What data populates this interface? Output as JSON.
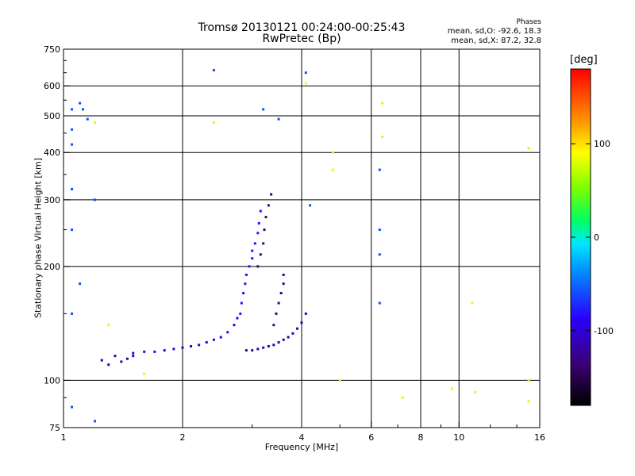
{
  "title": {
    "line1": "Tromsø 20130121 00:24:00-00:25:43",
    "line2": "RwPretec (Bp)"
  },
  "phases": {
    "heading": "Phases",
    "o_stats": "mean, sd,O: -92.6, 18.3",
    "x_stats": "mean, sd,X: 87.2, 32.8"
  },
  "colorbar": {
    "unit": "[deg]",
    "range": [
      -180,
      180
    ],
    "ticks": [
      "100",
      "0",
      "-100"
    ],
    "tick_values": [
      100,
      0,
      -100
    ]
  },
  "chart_data": {
    "type": "scatter",
    "xlabel": "Frequency [MHz]",
    "ylabel": "Stationary phase Virtual Height [km]",
    "xscale": "log",
    "yscale": "log",
    "xlim": [
      1,
      16
    ],
    "ylim": [
      75,
      750
    ],
    "xticks": [
      "1",
      "2",
      "4",
      "6",
      "8",
      "10",
      "16"
    ],
    "xtick_values": [
      1,
      2,
      4,
      6,
      8,
      10,
      16
    ],
    "yticks": [
      "750",
      "600",
      "500",
      "400",
      "300",
      "200",
      "100",
      "75"
    ],
    "ytick_values": [
      750,
      600,
      500,
      400,
      300,
      200,
      100,
      75
    ],
    "xgrid": [
      2,
      4,
      6,
      8,
      10
    ],
    "ygrid": [
      600,
      500,
      400,
      300,
      200,
      100
    ],
    "color_by": "phase [deg]",
    "series": [
      {
        "trace": "o-mode-base",
        "phase": -95,
        "points": [
          [
            1.5,
            118
          ],
          [
            1.6,
            119
          ],
          [
            1.7,
            119
          ],
          [
            1.8,
            120
          ],
          [
            1.9,
            121
          ],
          [
            2.0,
            122
          ],
          [
            2.1,
            123
          ],
          [
            2.2,
            124
          ],
          [
            2.3,
            126
          ],
          [
            2.4,
            128
          ],
          [
            2.5,
            130
          ],
          [
            2.6,
            134
          ],
          [
            2.7,
            140
          ],
          [
            2.75,
            146
          ]
        ]
      },
      {
        "trace": "o-mode-cusp",
        "phase": -80,
        "points": [
          [
            2.8,
            150
          ],
          [
            2.82,
            160
          ],
          [
            2.85,
            170
          ],
          [
            2.88,
            180
          ],
          [
            2.9,
            190
          ],
          [
            2.95,
            200
          ],
          [
            3.0,
            210
          ],
          [
            3.0,
            220
          ],
          [
            3.05,
            230
          ],
          [
            3.1,
            245
          ],
          [
            3.12,
            260
          ],
          [
            3.15,
            280
          ]
        ]
      },
      {
        "trace": "x-mode-base",
        "phase": -115,
        "points": [
          [
            2.9,
            120
          ],
          [
            3.0,
            120
          ],
          [
            3.1,
            121
          ],
          [
            3.2,
            122
          ],
          [
            3.3,
            123
          ],
          [
            3.4,
            124
          ],
          [
            3.5,
            126
          ],
          [
            3.6,
            128
          ],
          [
            3.7,
            130
          ],
          [
            3.8,
            133
          ],
          [
            3.9,
            137
          ],
          [
            4.0,
            142
          ],
          [
            4.1,
            150
          ]
        ]
      },
      {
        "trace": "x-mode-cusp",
        "phase": -135,
        "points": [
          [
            3.1,
            200
          ],
          [
            3.15,
            215
          ],
          [
            3.2,
            230
          ],
          [
            3.22,
            250
          ],
          [
            3.25,
            270
          ],
          [
            3.3,
            290
          ],
          [
            3.35,
            310
          ]
        ]
      },
      {
        "trace": "x-mode-second-cusp",
        "phase": -125,
        "points": [
          [
            3.4,
            140
          ],
          [
            3.45,
            150
          ],
          [
            3.5,
            160
          ],
          [
            3.55,
            170
          ],
          [
            3.6,
            180
          ],
          [
            3.6,
            190
          ]
        ]
      },
      {
        "trace": "scattered-low",
        "phase": -110,
        "points": [
          [
            1.25,
            113
          ],
          [
            1.3,
            110
          ],
          [
            1.35,
            116
          ],
          [
            1.4,
            112
          ],
          [
            1.45,
            114
          ],
          [
            1.5,
            116
          ]
        ]
      },
      {
        "trace": "isolated",
        "phase": -60,
        "points": [
          [
            1.05,
            520
          ],
          [
            1.05,
            460
          ],
          [
            1.05,
            420
          ],
          [
            1.05,
            320
          ],
          [
            1.05,
            250
          ],
          [
            1.05,
            150
          ],
          [
            1.1,
            540
          ],
          [
            1.12,
            520
          ],
          [
            1.15,
            490
          ],
          [
            1.2,
            300
          ],
          [
            2.4,
            660
          ],
          [
            3.2,
            520
          ],
          [
            3.5,
            490
          ],
          [
            4.1,
            650
          ],
          [
            4.2,
            290
          ],
          [
            6.3,
            360
          ],
          [
            6.3,
            250
          ],
          [
            6.3,
            215
          ],
          [
            6.3,
            160
          ],
          [
            1.1,
            180
          ],
          [
            1.05,
            85
          ],
          [
            1.2,
            78
          ]
        ]
      },
      {
        "trace": "isolated-warm",
        "phase": 80,
        "points": [
          [
            1.2,
            480
          ],
          [
            2.4,
            480
          ],
          [
            4.1,
            610
          ],
          [
            4.8,
            360
          ],
          [
            4.8,
            400
          ],
          [
            5.0,
            100
          ],
          [
            6.4,
            540
          ],
          [
            6.4,
            440
          ],
          [
            7.2,
            90
          ],
          [
            9.6,
            95
          ],
          [
            11.0,
            93
          ],
          [
            10.8,
            160
          ],
          [
            15.0,
            410
          ],
          [
            15.0,
            100
          ],
          [
            15.0,
            88
          ],
          [
            1.6,
            104
          ],
          [
            1.3,
            140
          ]
        ]
      }
    ]
  }
}
